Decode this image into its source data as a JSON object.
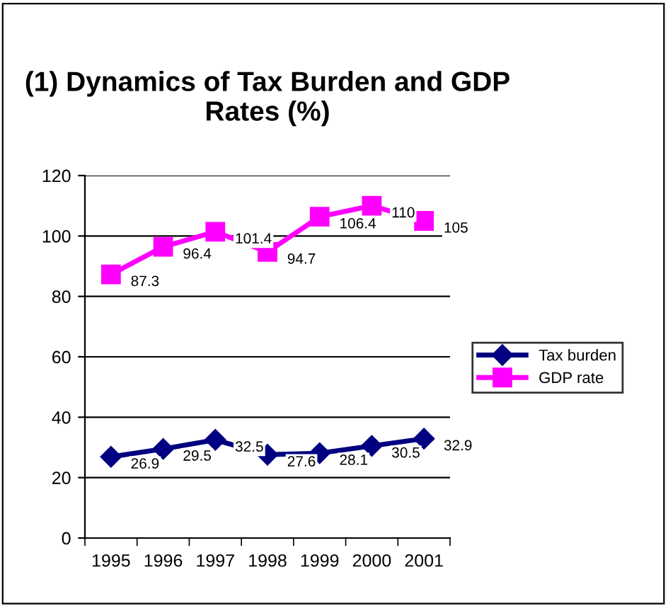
{
  "chart_data": {
    "type": "line",
    "title": "(1) Dynamics of Tax Burden and GDP Rates (%)",
    "categories": [
      "1995",
      "1996",
      "1997",
      "1998",
      "1999",
      "2000",
      "2001"
    ],
    "series": [
      {
        "name": "Tax burden",
        "color": "#000080",
        "marker": "diamond",
        "values": [
          26.9,
          29.5,
          32.5,
          27.6,
          28.1,
          30.5,
          32.9
        ]
      },
      {
        "name": "GDP rate",
        "color": "#ff00ff",
        "marker": "square",
        "values": [
          87.3,
          96.4,
          101.4,
          94.7,
          106.4,
          110,
          105
        ]
      }
    ],
    "ylim": [
      0,
      120
    ],
    "yticks": [
      0,
      20,
      40,
      60,
      80,
      100,
      120
    ],
    "grid": "y",
    "legend": "right",
    "data_labels": true
  }
}
